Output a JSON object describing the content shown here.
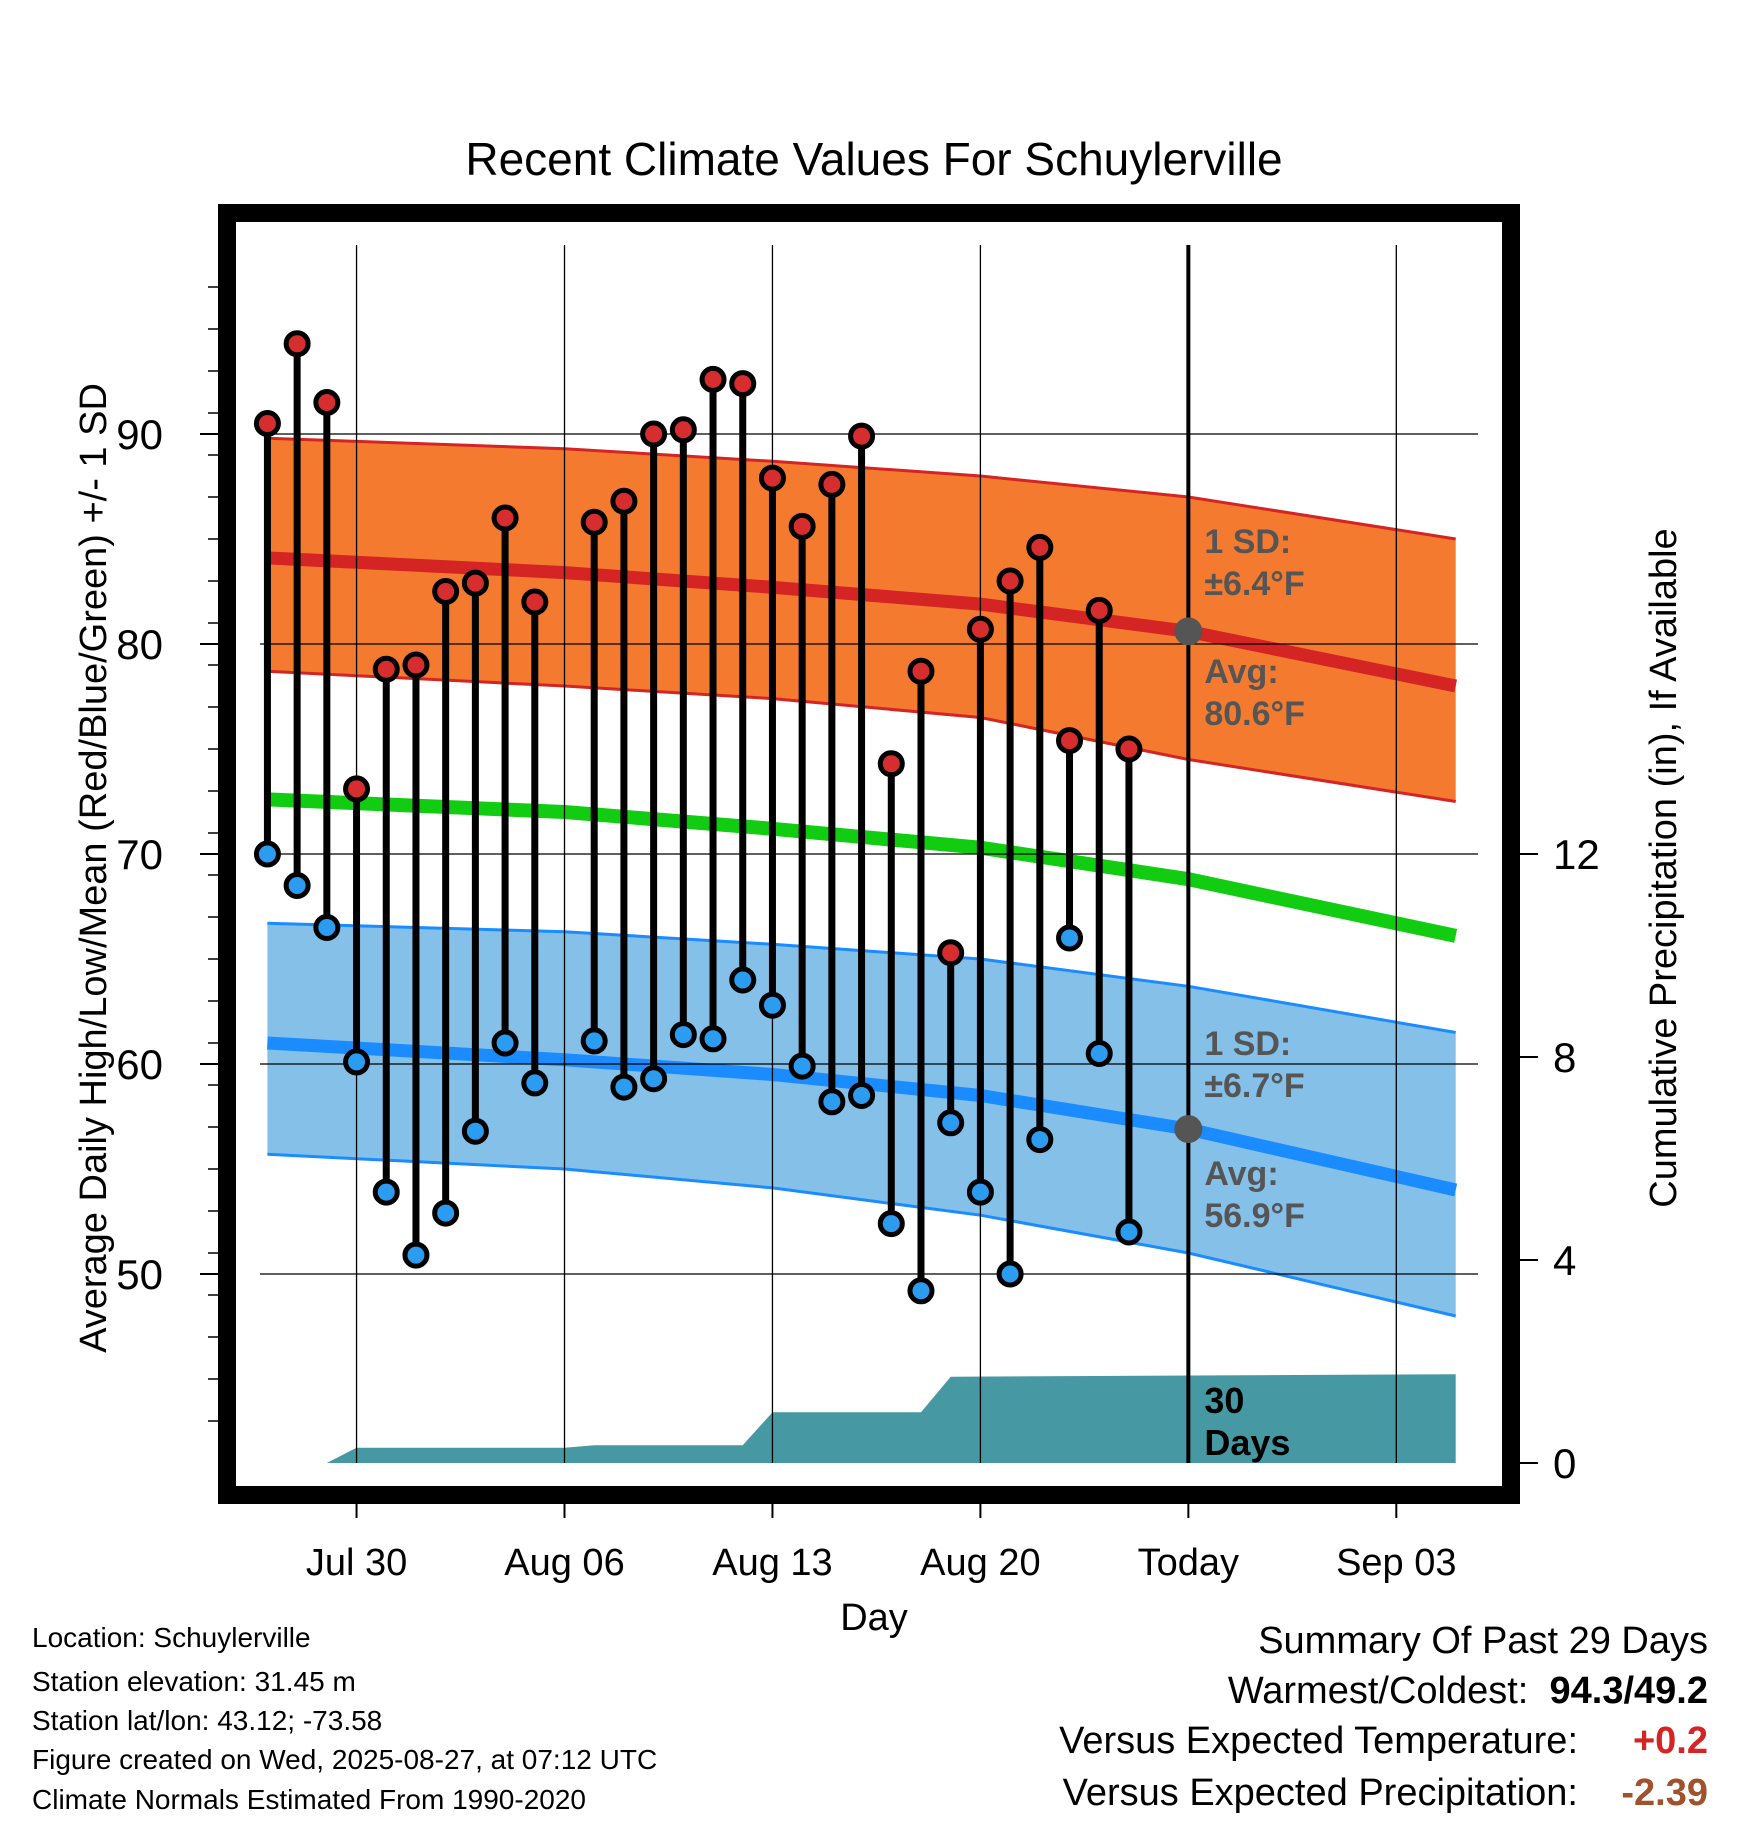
{
  "chart_data": {
    "type": "line",
    "title": "Recent Climate Values For Schuylerville",
    "xlabel": "Day",
    "ylabel": "Average Daily High/Low/Mean (Red/Blue/Green) +/- 1 SD",
    "y2label": "Cumulative Precipitation (in), If Available",
    "ylim": [
      41,
      99
    ],
    "y_ticks": [
      "50",
      "60",
      "70",
      "80",
      "90"
    ],
    "y2lim": [
      0,
      24
    ],
    "y2_ticks": [
      "0",
      "4",
      "8",
      "12"
    ],
    "x_ticks": [
      "Jul 30",
      "Aug 06",
      "Aug 13",
      "Aug 20",
      "Today",
      "Sep 03"
    ],
    "x_tick_dates": [
      "2025-07-30",
      "2025-08-06",
      "2025-08-13",
      "2025-08-20",
      "2025-08-27",
      "2025-09-03"
    ],
    "xlim": [
      "2025-07-26 18:00",
      "2025-09-05 18:00"
    ],
    "today": "2025-08-27",
    "high_band": {
      "dates": [
        "2025-07-27",
        "2025-08-06",
        "2025-08-13",
        "2025-08-20",
        "2025-08-27",
        "2025-09-05"
      ],
      "mean": [
        84.1,
        83.4,
        82.7,
        81.9,
        80.6,
        78.0
      ],
      "upper": [
        89.8,
        89.3,
        88.7,
        88.0,
        87.0,
        85.0
      ],
      "lower": [
        78.7,
        78.0,
        77.4,
        76.5,
        74.5,
        72.5
      ]
    },
    "low_band": {
      "dates": [
        "2025-07-27",
        "2025-08-06",
        "2025-08-13",
        "2025-08-20",
        "2025-08-27",
        "2025-09-05"
      ],
      "mean": [
        61.0,
        60.2,
        59.5,
        58.5,
        56.9,
        54.0
      ],
      "upper": [
        66.7,
        66.3,
        65.7,
        65.0,
        63.7,
        61.5
      ],
      "lower": [
        55.7,
        55.0,
        54.1,
        52.8,
        51.0,
        48.0
      ]
    },
    "mean_line": {
      "dates": [
        "2025-07-27",
        "2025-08-06",
        "2025-08-13",
        "2025-08-20",
        "2025-08-27",
        "2025-09-05"
      ],
      "values": [
        72.6,
        72.0,
        71.2,
        70.3,
        68.8,
        66.1
      ]
    },
    "observations": [
      {
        "date": "2025-07-27",
        "high": 90.5,
        "low": 70.0
      },
      {
        "date": "2025-07-28",
        "high": 94.3,
        "low": 68.5
      },
      {
        "date": "2025-07-29",
        "high": 91.5,
        "low": 66.5
      },
      {
        "date": "2025-07-30",
        "high": 73.1,
        "low": 60.1
      },
      {
        "date": "2025-07-31",
        "high": 78.8,
        "low": 53.9
      },
      {
        "date": "2025-08-01",
        "high": 79.0,
        "low": 50.9
      },
      {
        "date": "2025-08-02",
        "high": 82.5,
        "low": 52.9
      },
      {
        "date": "2025-08-03",
        "high": 82.9,
        "low": 56.8
      },
      {
        "date": "2025-08-04",
        "high": 86.0,
        "low": 61.0
      },
      {
        "date": "2025-08-05",
        "high": 82.0,
        "low": 59.1
      },
      {
        "date": "2025-08-07",
        "high": 85.8,
        "low": 61.1
      },
      {
        "date": "2025-08-08",
        "high": 86.8,
        "low": 58.9
      },
      {
        "date": "2025-08-09",
        "high": 90.0,
        "low": 59.3
      },
      {
        "date": "2025-08-10",
        "high": 90.2,
        "low": 61.4
      },
      {
        "date": "2025-08-11",
        "high": 92.6,
        "low": 61.2
      },
      {
        "date": "2025-08-12",
        "high": 92.4,
        "low": 64.0
      },
      {
        "date": "2025-08-13",
        "high": 87.9,
        "low": 62.8
      },
      {
        "date": "2025-08-14",
        "high": 85.6,
        "low": 59.9
      },
      {
        "date": "2025-08-15",
        "high": 87.6,
        "low": 58.2
      },
      {
        "date": "2025-08-16",
        "high": 89.9,
        "low": 58.5
      },
      {
        "date": "2025-08-17",
        "high": 74.3,
        "low": 52.4
      },
      {
        "date": "2025-08-18",
        "high": 78.7,
        "low": 49.2
      },
      {
        "date": "2025-08-19",
        "high": 65.3,
        "low": 57.2
      },
      {
        "date": "2025-08-20",
        "high": 80.7,
        "low": 53.9
      },
      {
        "date": "2025-08-21",
        "high": 83.0,
        "low": 50.0
      },
      {
        "date": "2025-08-22",
        "high": 84.6,
        "low": 56.4
      },
      {
        "date": "2025-08-23",
        "high": 75.4,
        "low": 66.0
      },
      {
        "date": "2025-08-24",
        "high": 81.6,
        "low": 60.5
      },
      {
        "date": "2025-08-25",
        "high": 75.0,
        "low": 52.0
      }
    ],
    "precipitation_cumulative": {
      "dates": [
        "2025-07-27",
        "2025-07-29",
        "2025-07-30",
        "2025-08-06",
        "2025-08-07",
        "2025-08-12",
        "2025-08-13",
        "2025-08-18",
        "2025-08-19",
        "2025-09-05"
      ],
      "values": [
        0.0,
        0.0,
        0.3,
        0.3,
        0.35,
        0.35,
        1.0,
        1.0,
        1.7,
        1.75
      ]
    },
    "today_markers": {
      "high_avg": 80.6,
      "low_avg": 56.9
    },
    "annotations": {
      "high_sd": [
        "1 SD:",
        "±6.4°F"
      ],
      "high_avg": [
        "Avg:",
        "80.6°F"
      ],
      "low_sd": [
        "1 SD:",
        "±6.7°F"
      ],
      "low_avg": [
        "Avg:",
        "56.9°F"
      ],
      "precip_days": [
        "30",
        "Days"
      ]
    },
    "grid": true,
    "colors": {
      "high_band": "#f47a2f",
      "high_mean": "#d42424",
      "high_marker": "#d62e2e",
      "low_band": "#84c0e8",
      "low_mean": "#1a8cff",
      "low_marker": "#2b9cf0",
      "mean_line": "#11cc11",
      "precip": "#4699a2",
      "annotation": "#555555",
      "today_marker": "#555555"
    }
  },
  "info": {
    "location": "Location: Schuylerville",
    "elevation": "Station elevation: 31.45 m",
    "latlon": "Station lat/lon: 43.12; -73.58",
    "created": "Figure created on Wed, 2025-08-27, at 07:12 UTC",
    "normals": "Climate Normals Estimated From 1990-2020"
  },
  "summary": {
    "title": "Summary Of Past 29 Days",
    "warmest_label": "Warmest/Coldest:",
    "warmest_hi": "94.3",
    "slash": "/",
    "warmest_lo": "49.2",
    "temp_label": "Versus Expected Temperature:",
    "temp_value": "+0.2",
    "temp_color": "#d42424",
    "precip_label": "Versus Expected Precipitation:",
    "precip_value": "-2.39",
    "precip_color": "#a0522d"
  }
}
